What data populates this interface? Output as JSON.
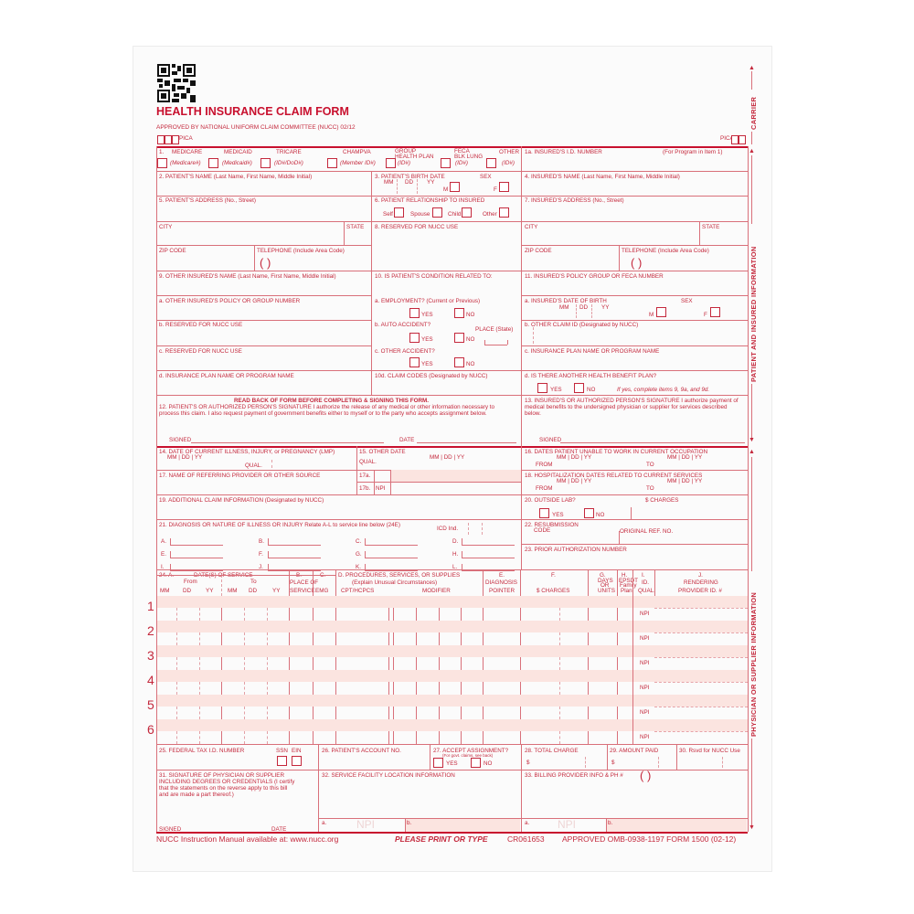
{
  "colors": {
    "form_red": "#c8102e",
    "line": "#d9707a",
    "shade": "#fbe4e0"
  },
  "header": {
    "title": "HEALTH INSURANCE CLAIM FORM",
    "approved": "APPROVED BY NATIONAL UNIFORM CLAIM COMMITTEE (NUCC) 02/12",
    "pica_left": "PICA",
    "pica_right": "PICA",
    "qr_icon": "qr-code"
  },
  "side": {
    "carrier": "CARRIER",
    "patient": "PATIENT AND INSURED INFORMATION",
    "physician": "PHYSICIAN OR SUPPLIER INFORMATION"
  },
  "labels": {
    "i1": "1.",
    "medicare": "MEDICARE",
    "medicare_id": "(Medicare#)",
    "medicaid": "MEDICAID",
    "medicaid_id": "(Medicaid#)",
    "tricare": "TRICARE",
    "tricare_id": "(ID#/DoD#)",
    "champva": "CHAMPVA",
    "champva_id": "(Member ID#)",
    "group": "GROUP",
    "group2": "HEALTH PLAN",
    "group_id": "(ID#)",
    "feca": "FECA",
    "feca2": "BLK LUNG",
    "feca_id": "(ID#)",
    "other": "OTHER",
    "other_id": "(ID#)",
    "i1a": "1a. INSURED'S I.D. NUMBER",
    "i1a_note": "(For Program in Item 1)",
    "i2": "2. PATIENT'S NAME (Last Name, First Name, Middle Initial)",
    "i3": "3. PATIENT'S BIRTH DATE",
    "i3_mm": "MM",
    "i3_dd": "DD",
    "i3_yy": "YY",
    "i3_sex": "SEX",
    "i3_m": "M",
    "i3_f": "F",
    "i4": "4. INSURED'S NAME (Last Name, First Name, Middle Initial)",
    "i5": "5. PATIENT'S ADDRESS (No., Street)",
    "i6": "6. PATIENT RELATIONSHIP TO INSURED",
    "i6_self": "Self",
    "i6_spouse": "Spouse",
    "i6_child": "Child",
    "i6_other": "Other",
    "i7": "7. INSURED'S ADDRESS (No., Street)",
    "city": "CITY",
    "state": "STATE",
    "i8": "8. RESERVED FOR NUCC USE",
    "city_r": "CITY",
    "state_r": "STATE",
    "zip": "ZIP CODE",
    "tel": "TELEPHONE (Include Area Code)",
    "tel_paren": "(      )",
    "zip_r": "ZIP CODE",
    "tel_r": "TELEPHONE (Include Area Code)",
    "tel_paren_r": "(      )",
    "i9": "9. OTHER INSURED'S NAME (Last Name, First Name, Middle Initial)",
    "i10": "10. IS PATIENT'S CONDITION RELATED TO:",
    "i11": "11. INSURED'S POLICY GROUP OR FECA NUMBER",
    "i9a": "a. OTHER INSURED'S POLICY OR GROUP NUMBER",
    "i10a": "a. EMPLOYMENT? (Current or Previous)",
    "i10a_yes": "YES",
    "i10a_no": "NO",
    "i11a": "a. INSURED'S DATE OF BIRTH",
    "i11a_mm": "MM",
    "i11a_dd": "DD",
    "i11a_yy": "YY",
    "i11a_sex": "SEX",
    "i11a_m": "M",
    "i11a_f": "F",
    "i9b": "b. RESERVED FOR NUCC USE",
    "i10b": "b. AUTO ACCIDENT?",
    "i10b_place": "PLACE (State)",
    "i10b_yes": "YES",
    "i10b_no": "NO",
    "i11b": "b. OTHER CLAIM ID (Designated by NUCC)",
    "i9c": "c. RESERVED FOR NUCC USE",
    "i10c": "c. OTHER ACCIDENT?",
    "i10c_yes": "YES",
    "i10c_no": "NO",
    "i11c": "c. INSURANCE PLAN NAME OR PROGRAM NAME",
    "i9d": "d. INSURANCE PLAN NAME OR PROGRAM NAME",
    "i10d": "10d. CLAIM CODES (Designated by NUCC)",
    "i11d": "d. IS THERE ANOTHER HEALTH BENEFIT PLAN?",
    "i11d_yes": "YES",
    "i11d_no": "NO",
    "i11d_note": "If yes, complete items 9, 9a, and 9d.",
    "read_back": "READ BACK OF FORM BEFORE COMPLETING & SIGNING THIS FORM.",
    "i12": "12. PATIENT'S OR AUTHORIZED PERSON'S SIGNATURE  I authorize the release of any medical or other information necessary to process this claim. I also request payment of government benefits either to myself or to the party who accepts assignment below.",
    "i12_signed": "SIGNED",
    "i12_date": "DATE",
    "i13": "13. INSURED'S OR AUTHORIZED PERSON'S SIGNATURE I authorize payment of medical benefits to the undersigned physician or supplier for services described below.",
    "i13_signed": "SIGNED",
    "i14": "14. DATE OF CURRENT ILLNESS, INJURY, or PREGNANCY (LMP)",
    "i14_date": "MM   |   DD   |    YY",
    "i14_qual": "QUAL.",
    "i15": "15. OTHER DATE",
    "i15_qual": "QUAL.",
    "i15_date": "MM   |   DD   |    YY",
    "i16": "16. DATES PATIENT UNABLE TO WORK IN CURRENT OCCUPATION",
    "i16_date1": "MM  |  DD  |   YY",
    "i16_date2": "MM  |  DD  |   YY",
    "i16_from": "FROM",
    "i16_to": "TO",
    "i17": "17. NAME OF REFERRING PROVIDER OR OTHER SOURCE",
    "i17a": "17a.",
    "i17b": "17b.",
    "i17b_npi": "NPI",
    "i18": "18. HOSPITALIZATION DATES RELATED TO CURRENT SERVICES",
    "i18_date1": "MM  |  DD  |   YY",
    "i18_date2": "MM  |  DD  |   YY",
    "i18_from": "FROM",
    "i18_to": "TO",
    "i19": "19. ADDITIONAL CLAIM INFORMATION (Designated by NUCC)",
    "i20": "20. OUTSIDE LAB?",
    "i20_charges": "$ CHARGES",
    "i20_yes": "YES",
    "i20_no": "NO",
    "i21": "21. DIAGNOSIS OR NATURE OF ILLNESS OR INJURY  Relate A-L to service line below (24E)",
    "i21_icd": "ICD Ind.",
    "dA": "A.",
    "dB": "B.",
    "dC": "C.",
    "dD": "D.",
    "dE": "E.",
    "dF": "F.",
    "dG": "G.",
    "dH": "H.",
    "dI": "I.",
    "dJ": "J.",
    "dK": "K.",
    "dL": "L.",
    "i22": "22. RESUBMISSION",
    "i22_code": "CODE",
    "i22_ref": "ORIGINAL REF. NO.",
    "i23": "23. PRIOR AUTHORIZATION NUMBER",
    "h24a": "24.  A.",
    "h24_dates": "DATE(S) OF SERVICE",
    "h24_from": "From",
    "h24_to": "To",
    "h_mm1": "MM",
    "h_dd1": "DD",
    "h_yy1": "YY",
    "h_mm2": "MM",
    "h_dd2": "DD",
    "h_yy2": "YY",
    "h24b": "B.",
    "h24b2": "PLACE OF",
    "h24b3": "SERVICE",
    "h24c": "C.",
    "h24c2": "EMG",
    "h24d": "D. PROCEDURES, SERVICES, OR SUPPLIES",
    "h24d2": "(Explain Unusual Circumstances)",
    "h24d3": "CPT/HCPCS",
    "h24d4": "MODIFIER",
    "h24e": "E.",
    "h24e2": "DIAGNOSIS",
    "h24e3": "POINTER",
    "h24f": "F.",
    "h24f2": "$ CHARGES",
    "h24g": "G.",
    "h24g2": "DAYS",
    "h24g3": "OR",
    "h24g4": "UNITS",
    "h24h": "H.",
    "h24h2": "EPSDT",
    "h24h3": "Family",
    "h24h4": "Plan",
    "h24i": "I.",
    "h24i2": "ID.",
    "h24i3": "QUAL.",
    "h24j": "J.",
    "h24j2": "RENDERING",
    "h24j3": "PROVIDER ID. #",
    "i25": "25. FEDERAL TAX I.D. NUMBER",
    "i25_ssn": "SSN",
    "i25_ein": "EIN",
    "i26": "26. PATIENT'S ACCOUNT NO.",
    "i27": "27. ACCEPT ASSIGNMENT?",
    "i27_note": "(For govt. claims, see back)",
    "i27_yes": "YES",
    "i27_no": "NO",
    "i28": "28. TOTAL CHARGE",
    "i28_dollar": "$",
    "i29": "29. AMOUNT PAID",
    "i29_dollar": "$",
    "i30": "30. Rsvd for NUCC Use",
    "i31": "31. SIGNATURE OF PHYSICIAN OR SUPPLIER INCLUDING DEGREES OR CREDENTIALS (I certify that the statements on the reverse apply to this bill and are made a part thereof.)",
    "i31_signed": "SIGNED",
    "i31_date": "DATE",
    "i32": "32. SERVICE FACILITY LOCATION INFORMATION",
    "i33": "33. BILLING PROVIDER INFO & PH #",
    "i33_paren": "(      )",
    "i32a": "a.",
    "i32a_npi": "NPI",
    "i32b": "b.",
    "i33a": "a.",
    "i33a_npi": "NPI",
    "i33b": "b."
  },
  "service_lines": {
    "numbers": [
      "1",
      "2",
      "3",
      "4",
      "5",
      "6"
    ],
    "npi": "NPI"
  },
  "footer": {
    "manual": "NUCC Instruction Manual available at: www.nucc.org",
    "print": "PLEASE PRINT OR TYPE",
    "code": "CR061653",
    "approved": "APPROVED OMB-0938-1197 FORM 1500 (02-12)"
  }
}
